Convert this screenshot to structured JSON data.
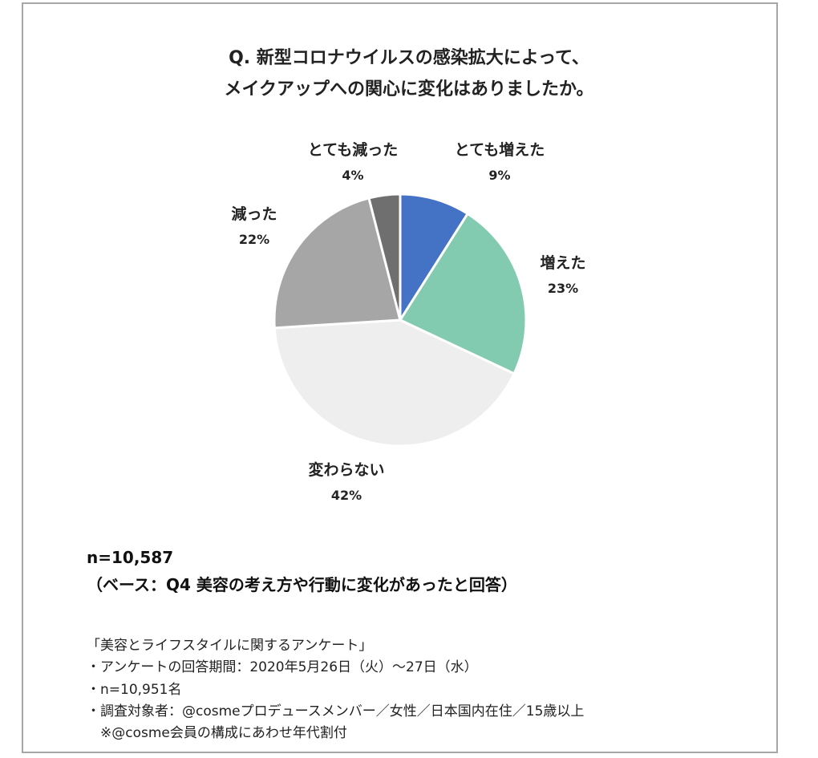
{
  "chart_data": {
    "type": "pie",
    "title_line1": "Q. 新型コロナウイルスの感染拡大によって、",
    "title_line2": "メイクアップへの関心に変化はありましたか。",
    "slices": [
      {
        "label": "とても増えた",
        "value": 9,
        "display": "9%",
        "color": "#4472c4"
      },
      {
        "label": "増えた",
        "value": 23,
        "display": "23%",
        "color": "#82cbb0"
      },
      {
        "label": "変わらない",
        "value": 42,
        "display": "42%",
        "color": "#eeeeee"
      },
      {
        "label": "減った",
        "value": 22,
        "display": "22%",
        "color": "#a6a6a6"
      },
      {
        "label": "とても減った",
        "value": 4,
        "display": "4%",
        "color": "#6f6f6f"
      }
    ]
  },
  "sample": {
    "n": "n=10,587",
    "base": "（ベース：Q4 美容の考え方や行動に変化があったと回答）"
  },
  "notes": [
    "「美容とライフスタイルに関するアンケート」",
    "・アンケートの回答期間：2020年5月26日（火）～27日（水）",
    "・n=10,951名",
    "・調査対象者：@cosmeプロデュースメンバー／女性／日本国内在住／15歳以上",
    "　※@cosme会員の構成にあわせ年代割付"
  ]
}
